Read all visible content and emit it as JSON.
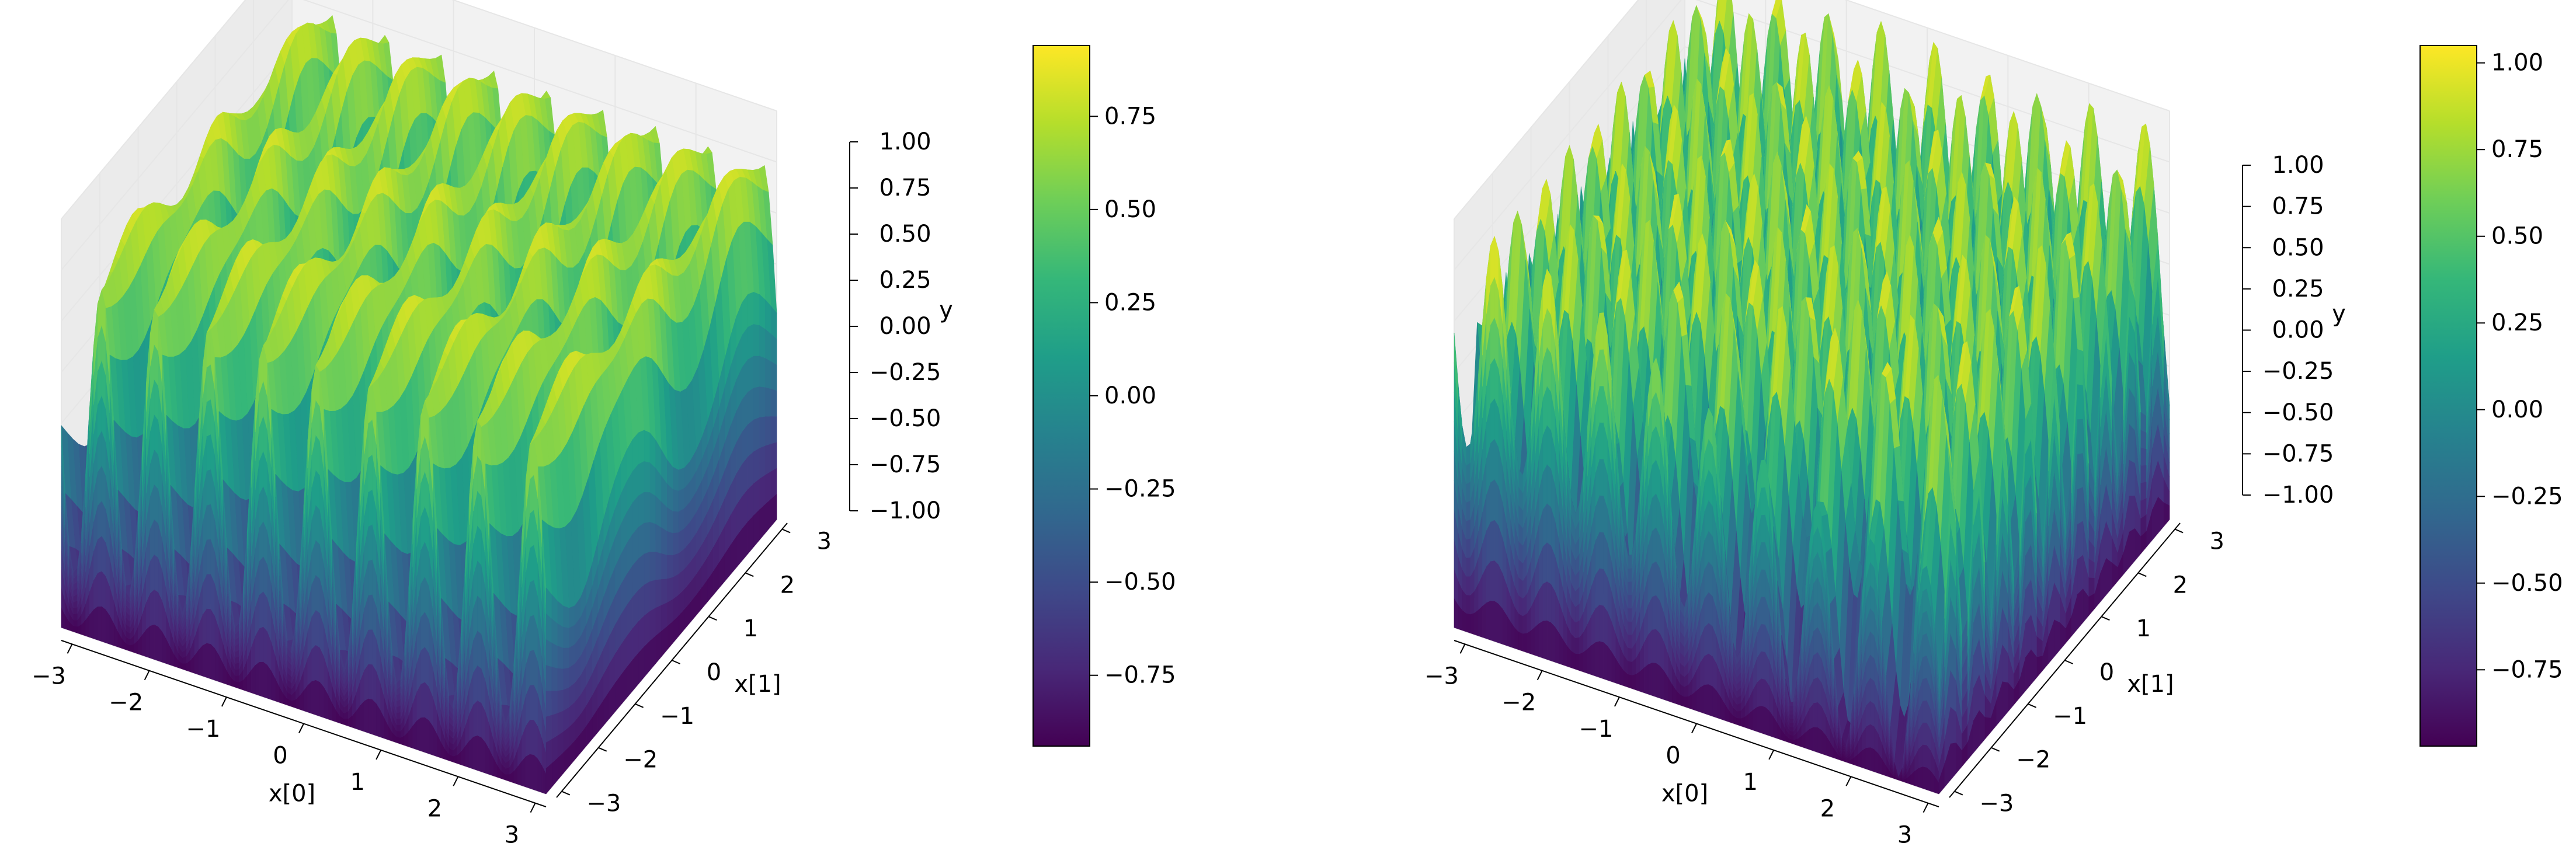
{
  "chart_data": [
    {
      "type": "surface3d",
      "panel": "left",
      "colormap": "viridis",
      "xlabel": "x[0]",
      "ylabel": "x[1]",
      "zlabel": "y",
      "x_ticks": [
        "−3",
        "−2",
        "−1",
        "0",
        "1",
        "2",
        "3"
      ],
      "y_ticks": [
        "−3",
        "−2",
        "−1",
        "0",
        "1",
        "2",
        "3"
      ],
      "z_ticks": [
        "−1.00",
        "−0.75",
        "−0.50",
        "−0.25",
        "0.00",
        "0.25",
        "0.50",
        "0.75",
        "1.00"
      ],
      "xlim": [
        -3.14,
        3.14
      ],
      "ylim": [
        -3.14,
        3.14
      ],
      "zlim": [
        -1.0,
        1.0
      ],
      "surface_pattern": "ridges along x[1], high-frequency oscillation in x[0]",
      "colorbar": {
        "ticks": [
          "−0.75",
          "−0.50",
          "−0.25",
          "0.00",
          "0.25",
          "0.50",
          "0.75"
        ],
        "tick_values": [
          -0.75,
          -0.5,
          -0.25,
          0.0,
          0.25,
          0.5,
          0.75
        ],
        "range": [
          -0.94,
          0.94
        ]
      }
    },
    {
      "type": "surface3d",
      "panel": "right",
      "colormap": "viridis",
      "xlabel": "x[0]",
      "ylabel": "x[1]",
      "zlabel": "y",
      "x_ticks": [
        "−3",
        "−2",
        "−1",
        "0",
        "1",
        "2",
        "3"
      ],
      "y_ticks": [
        "−3",
        "−2",
        "−1",
        "0",
        "1",
        "2",
        "3"
      ],
      "z_ticks": [
        "−1.00",
        "−0.75",
        "−0.50",
        "−0.25",
        "0.00",
        "0.25",
        "0.50",
        "0.75",
        "1.00"
      ],
      "xlim": [
        -3.14,
        3.14
      ],
      "ylim": [
        -3.14,
        3.14
      ],
      "zlim": [
        -1.0,
        1.0
      ],
      "surface_pattern": "checkerboard-like high-frequency oscillation in both x[0] and x[1]",
      "colorbar": {
        "ticks": [
          "−0.75",
          "−0.50",
          "−0.25",
          "0.00",
          "0.25",
          "0.50",
          "0.75",
          "1.00"
        ],
        "tick_values": [
          -0.75,
          -0.5,
          -0.25,
          0.0,
          0.25,
          0.5,
          0.75,
          1.0
        ],
        "range": [
          -0.97,
          1.05
        ]
      }
    }
  ],
  "colors": {
    "viridis_stops": [
      "#440154",
      "#482878",
      "#3e4989",
      "#31688e",
      "#26828e",
      "#1f9e89",
      "#35b779",
      "#6ece58",
      "#b5de2b",
      "#fde725"
    ],
    "pane_light": "#f2f2f2",
    "pane_mid": "#ebebeb",
    "pane_dark": "#e6e6e6",
    "grid": "#e6e6e6"
  }
}
